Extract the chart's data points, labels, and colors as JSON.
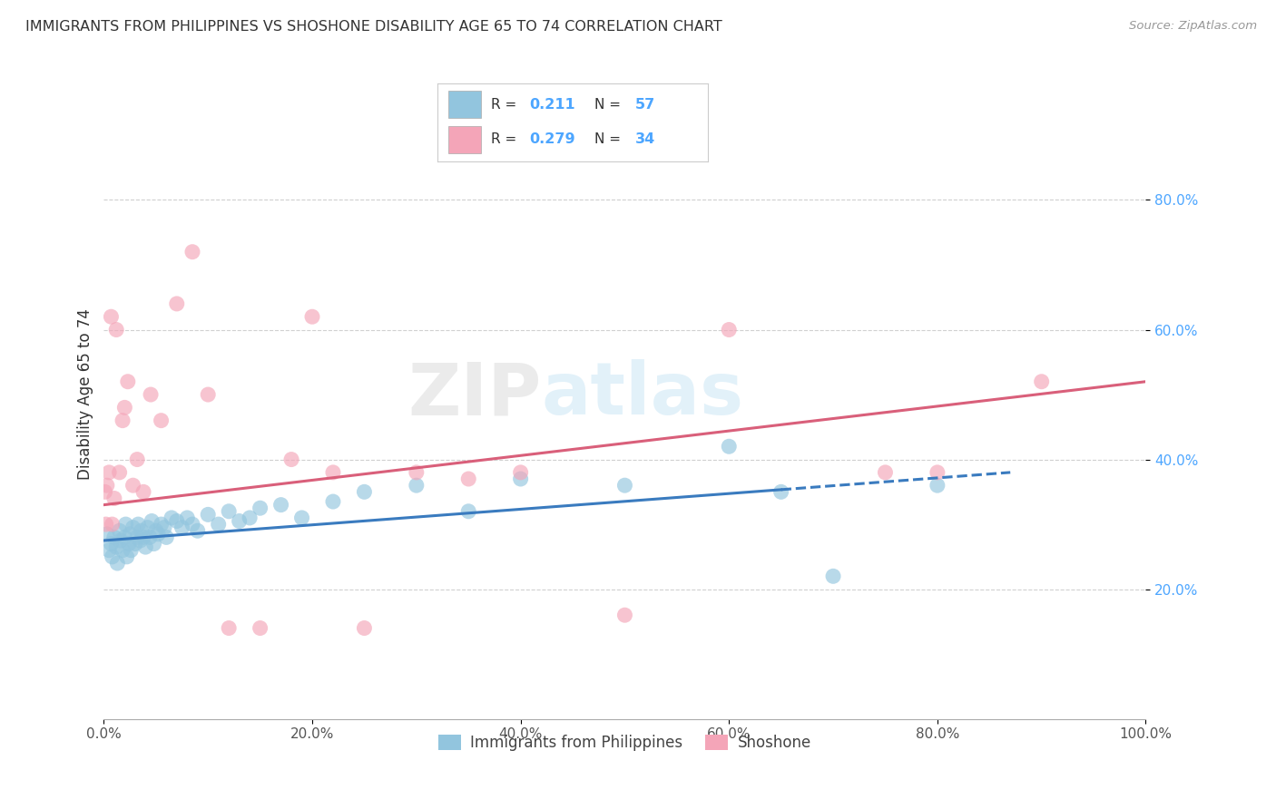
{
  "title": "IMMIGRANTS FROM PHILIPPINES VS SHOSHONE DISABILITY AGE 65 TO 74 CORRELATION CHART",
  "source": "Source: ZipAtlas.com",
  "ylabel": "Disability Age 65 to 74",
  "watermark": "ZIPatlas",
  "blue_R": 0.211,
  "blue_N": 57,
  "pink_R": 0.279,
  "pink_N": 34,
  "blue_color": "#92c5de",
  "pink_color": "#f4a5b8",
  "blue_line_color": "#3a7bbf",
  "pink_line_color": "#d95f7a",
  "background_color": "#ffffff",
  "grid_color": "#d0d0d0",
  "blue_x": [
    0.3,
    0.5,
    0.7,
    0.8,
    1.0,
    1.2,
    1.3,
    1.5,
    1.6,
    1.8,
    2.0,
    2.1,
    2.2,
    2.4,
    2.5,
    2.6,
    2.8,
    3.0,
    3.2,
    3.3,
    3.5,
    3.6,
    3.8,
    4.0,
    4.2,
    4.4,
    4.6,
    4.8,
    5.0,
    5.2,
    5.5,
    5.8,
    6.0,
    6.5,
    7.0,
    7.5,
    8.0,
    8.5,
    9.0,
    10.0,
    11.0,
    12.0,
    13.0,
    14.0,
    15.0,
    17.0,
    19.0,
    22.0,
    25.0,
    30.0,
    35.0,
    40.0,
    50.0,
    60.0,
    65.0,
    70.0,
    80.0
  ],
  "blue_y": [
    28.5,
    26.0,
    27.0,
    25.0,
    28.0,
    26.5,
    24.0,
    29.0,
    27.5,
    26.0,
    28.0,
    30.0,
    25.0,
    27.0,
    28.5,
    26.0,
    29.5,
    27.0,
    28.0,
    30.0,
    27.5,
    29.0,
    28.0,
    26.5,
    29.5,
    28.0,
    30.5,
    27.0,
    29.0,
    28.5,
    30.0,
    29.5,
    28.0,
    31.0,
    30.5,
    29.5,
    31.0,
    30.0,
    29.0,
    31.5,
    30.0,
    32.0,
    30.5,
    31.0,
    32.5,
    33.0,
    31.0,
    33.5,
    35.0,
    36.0,
    32.0,
    37.0,
    36.0,
    42.0,
    35.0,
    22.0,
    36.0
  ],
  "pink_x": [
    0.1,
    0.2,
    0.3,
    0.5,
    0.7,
    0.8,
    1.0,
    1.2,
    1.5,
    1.8,
    2.0,
    2.3,
    2.8,
    3.2,
    3.8,
    4.5,
    5.5,
    7.0,
    8.5,
    10.0,
    12.0,
    15.0,
    18.0,
    20.0,
    22.0,
    25.0,
    30.0,
    35.0,
    40.0,
    50.0,
    60.0,
    75.0,
    80.0,
    90.0
  ],
  "pink_y": [
    35.0,
    30.0,
    36.0,
    38.0,
    62.0,
    30.0,
    34.0,
    60.0,
    38.0,
    46.0,
    48.0,
    52.0,
    36.0,
    40.0,
    35.0,
    50.0,
    46.0,
    64.0,
    72.0,
    50.0,
    14.0,
    14.0,
    40.0,
    62.0,
    38.0,
    14.0,
    38.0,
    37.0,
    38.0,
    16.0,
    60.0,
    38.0,
    38.0,
    52.0
  ],
  "xmin": 0.0,
  "xmax": 100.0,
  "ymin": 0.0,
  "ymax": 100.0,
  "ytick_vals": [
    20,
    40,
    60,
    80
  ],
  "ytick_labels": [
    "20.0%",
    "40.0%",
    "60.0%",
    "80.0%"
  ],
  "xtick_vals": [
    0,
    20,
    40,
    60,
    80,
    100
  ],
  "xtick_labels": [
    "0.0%",
    "20.0%",
    "40.0%",
    "60.0%",
    "80.0%",
    "100.0%"
  ],
  "legend_label_blue": "Immigrants from Philippines",
  "legend_label_pink": "Shoshone",
  "title_fontsize": 11.5,
  "tick_color": "#4da6ff",
  "title_color": "#333333",
  "blue_dashed_start": 65.0,
  "blue_line_end": 87.0
}
